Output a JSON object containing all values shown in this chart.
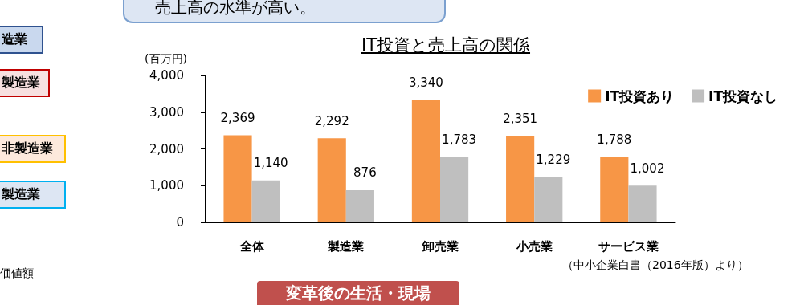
{
  "chart_data": {
    "type": "bar",
    "title": "IT投資と売上高の関係",
    "ylabel": "(百万円)",
    "categories": [
      "全体",
      "製造業",
      "卸売業",
      "小売業",
      "サービス業"
    ],
    "series": [
      {
        "name": "IT投資あり",
        "color": "#f79646",
        "values": [
          2369,
          2292,
          3340,
          2351,
          1788
        ],
        "value_labels": [
          "2,369",
          "2,292",
          "3,340",
          "2,351",
          "1,788"
        ]
      },
      {
        "name": "IT投資なし",
        "color": "#bfbfbf",
        "values": [
          1140,
          876,
          1783,
          1229,
          1002
        ],
        "value_labels": [
          "1,140",
          "876",
          "1,783",
          "1,229",
          "1,002"
        ]
      }
    ],
    "ylim": [
      0,
      4000
    ],
    "yticks": [
      0,
      {
        "value": 1000,
        "label": "1,000"
      },
      {
        "value": 2000,
        "label": "2,000"
      },
      {
        "value": 3000,
        "label": "3,000"
      },
      {
        "value": 4000,
        "label": "4,000"
      }
    ],
    "grid": false,
    "legend": "top right",
    "annotations": [
      "売上高の水準が高い。",
      "造業",
      "製造業",
      "非製造業",
      "製造業",
      "価値額",
      "変革後の生活・現場",
      "（中小企業白書（2016年版）より）"
    ]
  }
}
